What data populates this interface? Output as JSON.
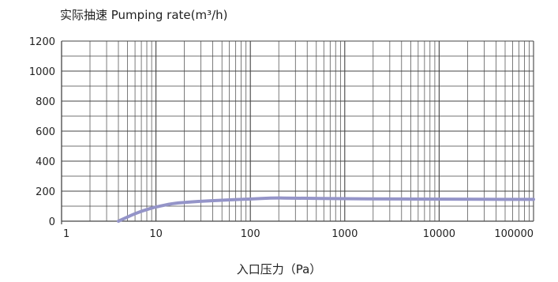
{
  "chart_data": {
    "type": "line",
    "title": "实际抽速 Pumping rate(m³/h)",
    "xlabel": "入口压力（Pa）",
    "ylabel": "",
    "x_scale": "log",
    "xlim": [
      1,
      100000
    ],
    "ylim": [
      0,
      1200
    ],
    "x_ticks": [
      "1",
      "10",
      "100",
      "1000",
      "10000",
      "100000"
    ],
    "y_ticks": [
      "0",
      "200",
      "400",
      "600",
      "800",
      "1000",
      "1200"
    ],
    "grid": true,
    "series": [
      {
        "color": "#9494c8",
        "x": [
          4,
          5,
          6,
          8,
          10,
          15,
          20,
          30,
          50,
          100,
          170,
          300,
          1000,
          3000,
          10000,
          100000
        ],
        "y": [
          0,
          28,
          50,
          78,
          95,
          118,
          125,
          133,
          140,
          148,
          155,
          153,
          150,
          148,
          147,
          145
        ]
      }
    ]
  }
}
